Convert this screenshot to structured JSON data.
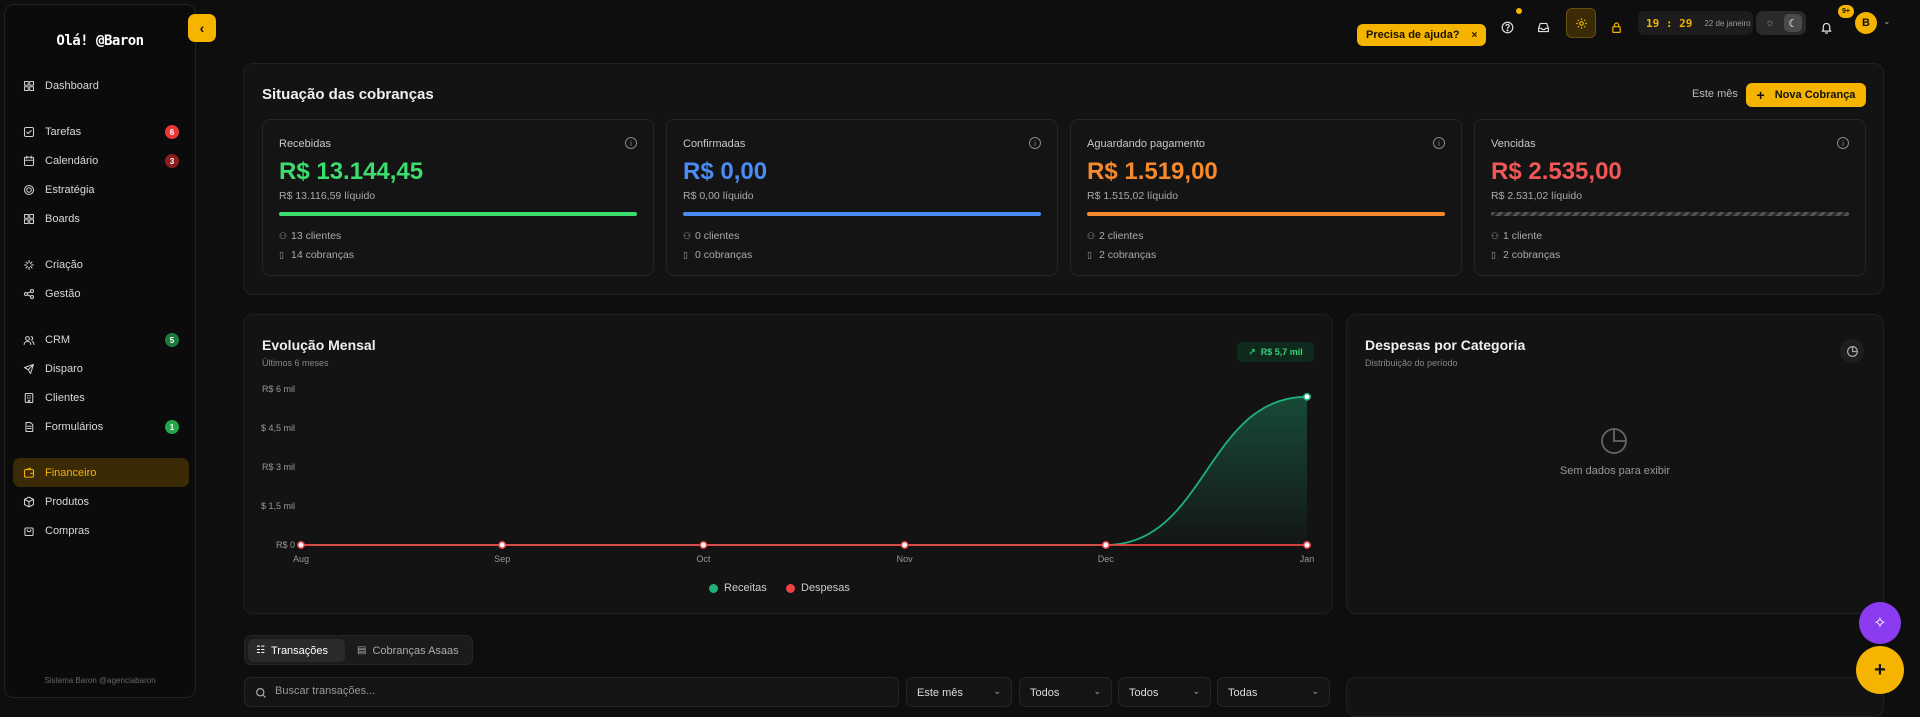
{
  "sidebar": {
    "greeting": "Olá! @Baron",
    "collapse_icon": "chevron-left-icon",
    "footer": "Sistema Baron @agenciabaron",
    "groups": [
      [
        {
          "label": "Dashboard",
          "icon": "dashboard-icon"
        }
      ],
      [
        {
          "label": "Tarefas",
          "icon": "checkbox-icon",
          "badge": "6",
          "badge_color": "#e53935"
        },
        {
          "label": "Calendário",
          "icon": "calendar-icon",
          "badge": "3",
          "badge_color": "#8b1e1e"
        },
        {
          "label": "Estratégia",
          "icon": "target-icon"
        },
        {
          "label": "Boards",
          "icon": "boards-icon"
        }
      ],
      [
        {
          "label": "Criação",
          "icon": "sparkle-icon"
        },
        {
          "label": "Gestão",
          "icon": "share-icon"
        }
      ],
      [
        {
          "label": "CRM",
          "icon": "users-icon",
          "badge": "5",
          "badge_color": "#1f7a3d"
        },
        {
          "label": "Disparo",
          "icon": "send-icon"
        },
        {
          "label": "Clientes",
          "icon": "building-icon"
        },
        {
          "label": "Formulários",
          "icon": "form-icon",
          "badge": "1",
          "badge_color": "#22a84a"
        }
      ],
      [
        {
          "label": "Financeiro",
          "icon": "wallet-icon",
          "active": true
        },
        {
          "label": "Produtos",
          "icon": "box-icon"
        },
        {
          "label": "Compras",
          "icon": "bag-icon"
        }
      ]
    ]
  },
  "topbar": {
    "help_label": "Precisa de ajuda?",
    "help_close": "×",
    "time": "19 : 29",
    "date": "22 de janeiro",
    "notif_count": "9+",
    "avatar_letter": "B"
  },
  "cobrancas": {
    "title": "Situação das cobranças",
    "period": "Este mês",
    "new_button": "Nova Cobrança",
    "cards": [
      {
        "label": "Recebidas",
        "value": "R$ 13.144,45",
        "net": "R$ 13.116,59 líquido",
        "clients": "13 clientes",
        "charges": "14 cobranças",
        "color": "#3ddc6f",
        "bar_style": "solid"
      },
      {
        "label": "Confirmadas",
        "value": "R$ 0,00",
        "net": "R$ 0,00 líquido",
        "clients": "0 clientes",
        "charges": "0 cobranças",
        "color": "#4a8cf5",
        "bar_style": "solid"
      },
      {
        "label": "Aguardando pagamento",
        "value": "R$ 1.519,00",
        "net": "R$ 1.515,02 líquido",
        "clients": "2 clientes",
        "charges": "2 cobranças",
        "color": "#f5892b",
        "bar_style": "solid"
      },
      {
        "label": "Vencidas",
        "value": "R$ 2.535,00",
        "net": "R$ 2.531,02 líquido",
        "clients": "1 cliente",
        "charges": "2 cobranças",
        "color": "#f25757",
        "bar_style": "striped"
      }
    ]
  },
  "evolucao": {
    "title": "Evolução Mensal",
    "subtitle": "Últimos 6 meses",
    "trend_pill": "R$ 5,7 mil",
    "legend": [
      {
        "name": "Receitas",
        "color": "#1fb07a"
      },
      {
        "name": "Despesas",
        "color": "#ef4444"
      }
    ]
  },
  "chart_data": {
    "type": "area",
    "categories": [
      "Aug",
      "Sep",
      "Oct",
      "Nov",
      "Dec",
      "Jan"
    ],
    "y_tick_labels": [
      "R$ 0",
      "$ 1,5 mil",
      "R$ 3 mil",
      "$ 4,5 mil",
      "R$ 6 mil"
    ],
    "y_ticks": [
      0,
      1500,
      3000,
      4500,
      6000
    ],
    "ylim": [
      0,
      6000
    ],
    "series": [
      {
        "name": "Receitas",
        "color": "#1fb07a",
        "values": [
          0,
          0,
          0,
          0,
          0,
          5700
        ]
      },
      {
        "name": "Despesas",
        "color": "#ef4444",
        "values": [
          0,
          0,
          0,
          0,
          0,
          0
        ]
      }
    ]
  },
  "despesas": {
    "title": "Despesas por Categoria",
    "subtitle": "Distribuição do período",
    "empty": "Sem dados para exibir"
  },
  "transacoes": {
    "tabs": [
      "Transações",
      "Cobranças Asaas"
    ],
    "search_placeholder": "Buscar transações...",
    "filters": [
      "Este mês",
      "Todos",
      "Todos",
      "Todas"
    ]
  }
}
